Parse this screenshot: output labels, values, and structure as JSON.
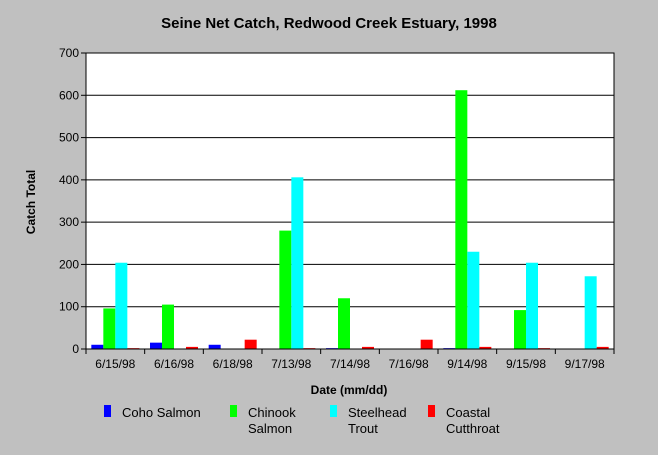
{
  "chart_data": {
    "type": "bar",
    "title": "Seine Net Catch, Redwood Creek Estuary, 1998",
    "xlabel": "Date (mm/dd)",
    "ylabel": "Catch Total",
    "ylim": [
      0,
      700
    ],
    "yticks": [
      0,
      100,
      200,
      300,
      400,
      500,
      600,
      700
    ],
    "grid": true,
    "legend_position": "bottom",
    "categories": [
      "6/15/98",
      "6/16/98",
      "6/18/98",
      "7/13/98",
      "7/14/98",
      "7/16/98",
      "9/14/98",
      "9/15/98",
      "9/17/98"
    ],
    "series": [
      {
        "name": "Coho Salmon",
        "legend_lines": [
          "Coho Salmon"
        ],
        "color": "#0000ff",
        "values": [
          10,
          15,
          10,
          0,
          2,
          0,
          2,
          0,
          0
        ]
      },
      {
        "name": "Chinook Salmon",
        "legend_lines": [
          "Chinook",
          "Salmon"
        ],
        "color": "#00ff00",
        "values": [
          96,
          105,
          0,
          280,
          120,
          0,
          612,
          92,
          0
        ]
      },
      {
        "name": "Steelhead Trout",
        "legend_lines": [
          "Steelhead",
          "Trout"
        ],
        "color": "#00ffff",
        "values": [
          204,
          0,
          0,
          406,
          0,
          0,
          230,
          204,
          172
        ]
      },
      {
        "name": "Coastal Cutthroat",
        "legend_lines": [
          "Coastal",
          "Cutthroat"
        ],
        "color": "#ff0000",
        "values": [
          2,
          5,
          22,
          2,
          5,
          22,
          5,
          2,
          5
        ]
      }
    ]
  }
}
